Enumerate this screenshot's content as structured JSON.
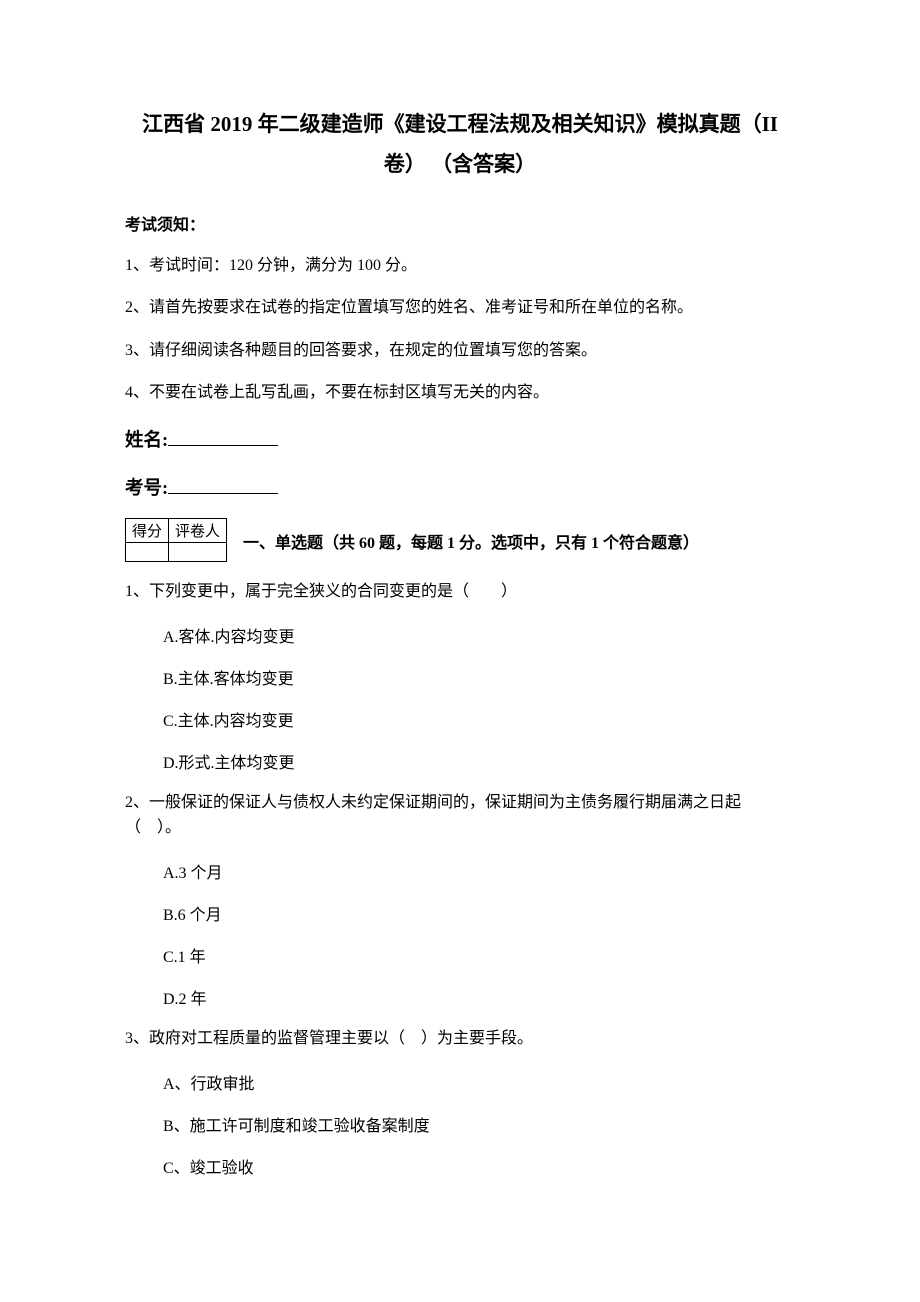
{
  "title_line1": "江西省 2019 年二级建造师《建设工程法规及相关知识》模拟真题（II",
  "title_line2": "卷） （含答案）",
  "notice_label": "考试须知：",
  "instructions": [
    "1、考试时间：120 分钟，满分为 100 分。",
    "2、请首先按要求在试卷的指定位置填写您的姓名、准考证号和所在单位的名称。",
    "3、请仔细阅读各种题目的回答要求，在规定的位置填写您的答案。",
    "4、不要在试卷上乱写乱画，不要在标封区填写无关的内容。"
  ],
  "name_label": "姓名:",
  "id_label": "考号:",
  "score_table": {
    "col1": "得分",
    "col2": "评卷人"
  },
  "section1_heading": "一、单选题（共 60 题，每题 1 分。选项中，只有 1 个符合题意）",
  "questions": [
    {
      "stem": "1、下列变更中，属于完全狭义的合同变更的是（　　）",
      "options": [
        "A.客体.内容均变更",
        "B.主体.客体均变更",
        "C.主体.内容均变更",
        "D.形式.主体均变更"
      ]
    },
    {
      "stem": "2、一般保证的保证人与债权人未约定保证期间的，保证期间为主债务履行期届满之日起（　）。",
      "options": [
        "A.3 个月",
        "B.6 个月",
        "C.1 年",
        "D.2 年"
      ]
    },
    {
      "stem": "3、政府对工程质量的监督管理主要以（　）为主要手段。",
      "options": [
        "A、行政审批",
        "B、施工许可制度和竣工验收备案制度",
        "C、竣工验收"
      ]
    }
  ]
}
